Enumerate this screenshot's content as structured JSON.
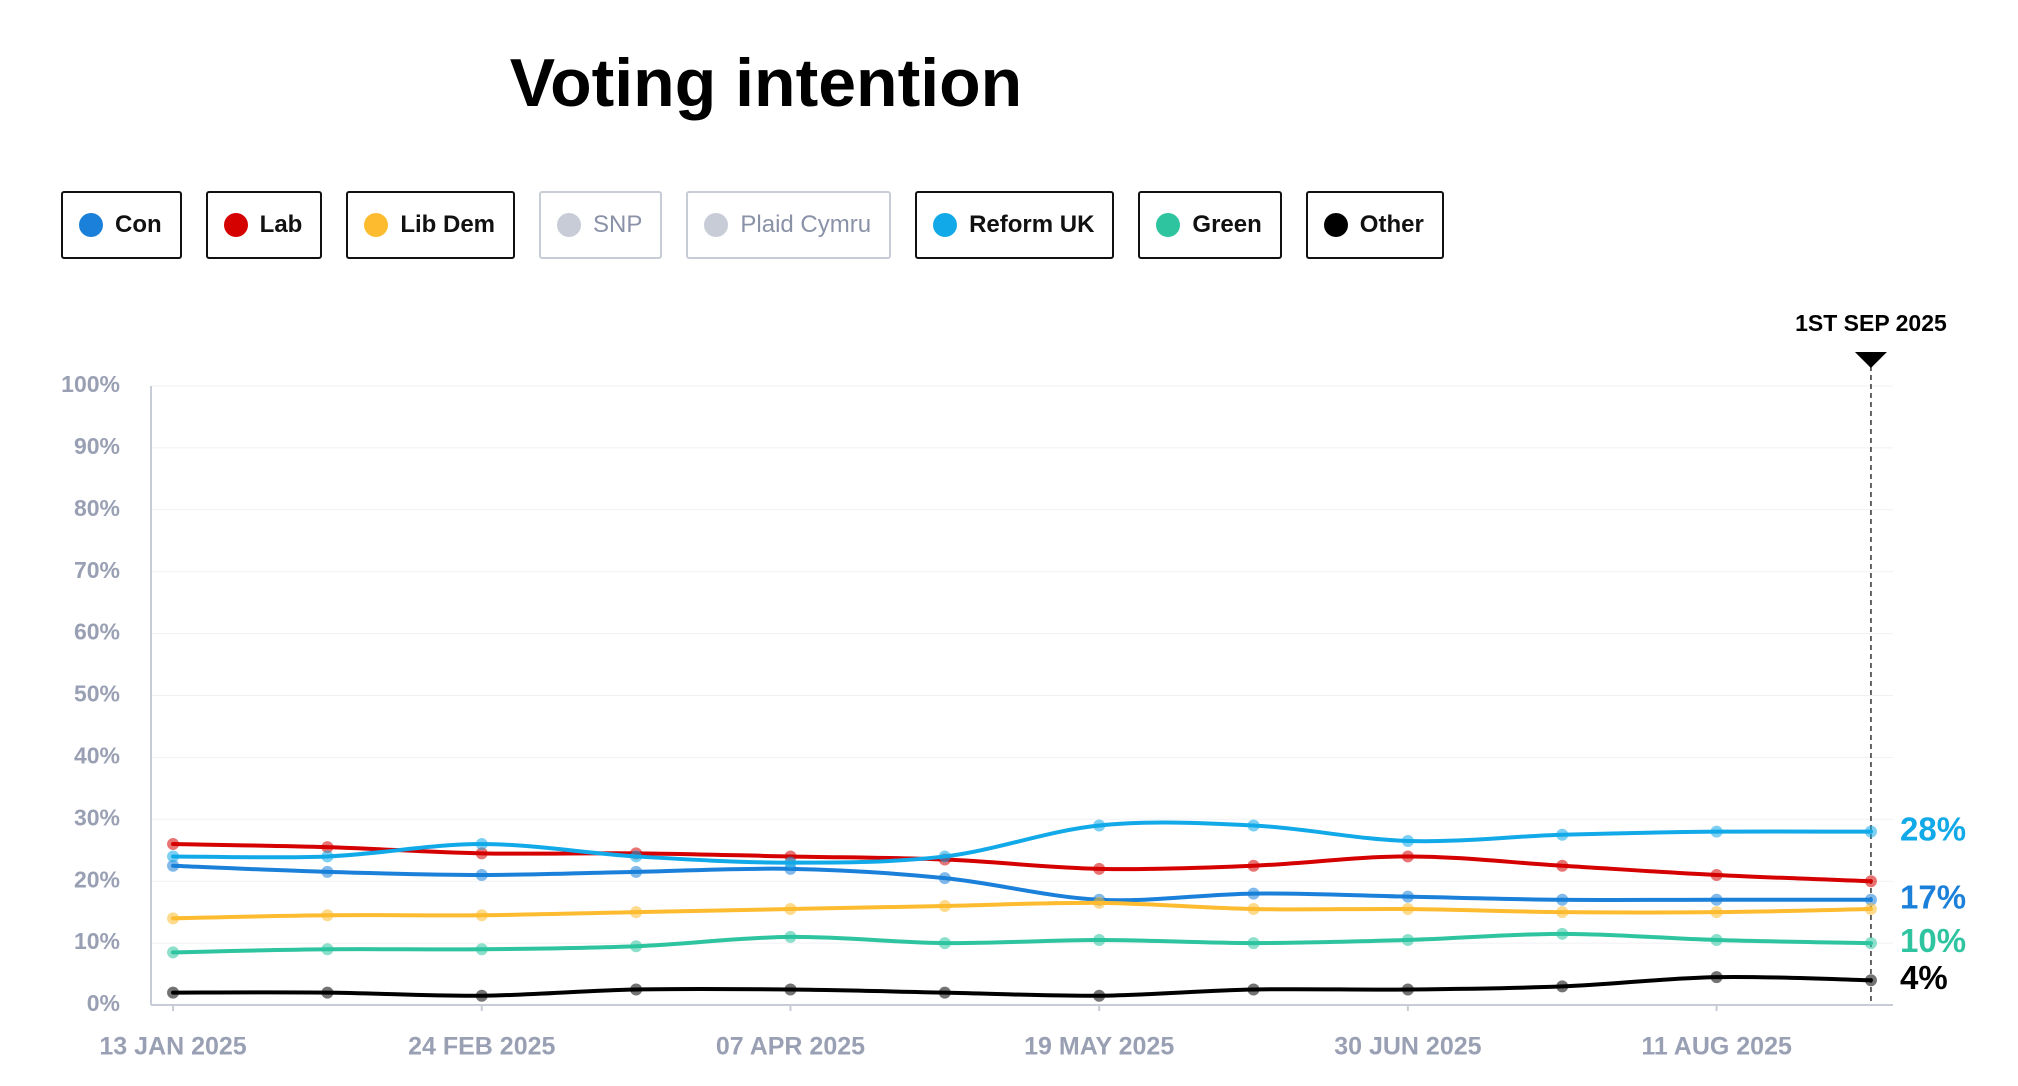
{
  "chart_data": {
    "type": "line",
    "title": "Voting intention",
    "x": [
      "2025-01-13",
      "2025-02-03",
      "2025-02-24",
      "2025-03-17",
      "2025-04-07",
      "2025-04-28",
      "2025-05-19",
      "2025-06-09",
      "2025-06-30",
      "2025-07-21",
      "2025-08-11",
      "2025-09-01"
    ],
    "series": [
      {
        "name": "Con",
        "color": "#1a80d9",
        "values": [
          22.5,
          21.5,
          21,
          21.5,
          22,
          20.5,
          17,
          18,
          17.5,
          17,
          17,
          17
        ],
        "end_label": "17%"
      },
      {
        "name": "Lab",
        "color": "#d50000",
        "values": [
          26,
          25.5,
          24.5,
          24.5,
          24,
          23.5,
          22,
          22.5,
          24,
          22.5,
          21,
          20
        ]
      },
      {
        "name": "Lib Dem",
        "color": "#fdbb30",
        "values": [
          14,
          14.5,
          14.5,
          15,
          15.5,
          16,
          16.5,
          15.5,
          15.5,
          15,
          15,
          15.5
        ]
      },
      {
        "name": "SNP",
        "color": "#c8ccd6",
        "hidden": true
      },
      {
        "name": "Plaid Cymru",
        "color": "#c8ccd6",
        "hidden": true
      },
      {
        "name": "Reform UK",
        "color": "#12a9e8",
        "values": [
          24,
          24,
          26,
          24,
          23,
          24,
          29,
          29,
          26.5,
          27.5,
          28,
          28
        ],
        "end_label": "28%"
      },
      {
        "name": "Green",
        "color": "#2ec4a0",
        "values": [
          8.5,
          9,
          9,
          9.5,
          11,
          10,
          10.5,
          10,
          10.5,
          11.5,
          10.5,
          10
        ],
        "end_label": "10%"
      },
      {
        "name": "Other",
        "color": "#000000",
        "values": [
          2,
          2,
          1.5,
          2.5,
          2.5,
          2,
          1.5,
          2.5,
          2.5,
          3,
          4.5,
          4
        ],
        "end_label": "4%"
      }
    ],
    "xlim": [
      "2025-01-10",
      "2025-09-04"
    ],
    "xticks": [
      {
        "value": "2025-01-13",
        "label": "13 JAN 2025"
      },
      {
        "value": "2025-02-24",
        "label": "24 FEB 2025"
      },
      {
        "value": "2025-04-07",
        "label": "07 APR 2025"
      },
      {
        "value": "2025-05-19",
        "label": "19 MAY 2025"
      },
      {
        "value": "2025-06-30",
        "label": "30 JUN 2025"
      },
      {
        "value": "2025-08-11",
        "label": "11 AUG 2025"
      }
    ],
    "ylim": [
      0,
      100
    ],
    "yticks": [
      {
        "value": 0,
        "label": "0%"
      },
      {
        "value": 10,
        "label": "10%"
      },
      {
        "value": 20,
        "label": "20%"
      },
      {
        "value": 30,
        "label": "30%"
      },
      {
        "value": 40,
        "label": "40%"
      },
      {
        "value": 50,
        "label": "50%"
      },
      {
        "value": 60,
        "label": "60%"
      },
      {
        "value": 70,
        "label": "70%"
      },
      {
        "value": 80,
        "label": "80%"
      },
      {
        "value": 90,
        "label": "90%"
      },
      {
        "value": 100,
        "label": "100%"
      }
    ],
    "grid": true,
    "marker": {
      "x": "2025-09-01",
      "label": "1ST SEP 2025"
    }
  }
}
